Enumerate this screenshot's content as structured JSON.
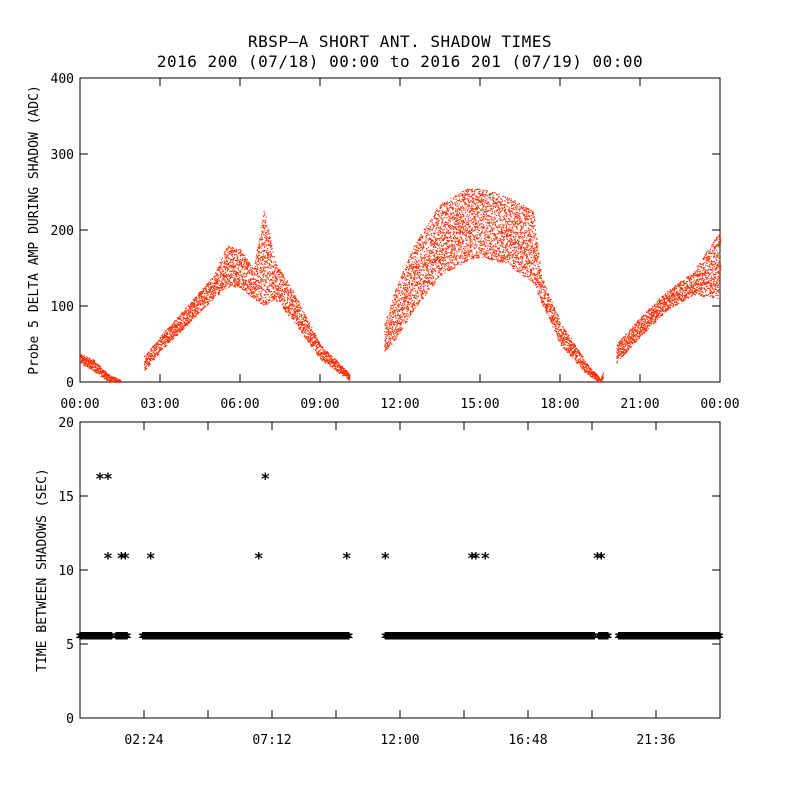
{
  "title_line1": "RBSP–A SHORT ANT. SHADOW TIMES",
  "title_line2": "2016 200 (07/18) 00:00 to 2016 201 (07/19) 00:00",
  "colors": {
    "points": "#ff2a00",
    "stars": "#000000",
    "axes": "#000000"
  },
  "chart_data": [
    {
      "type": "scatter",
      "title": "",
      "xlabel": "",
      "ylabel": "Probe 5 DELTA AMP DURING SHADOW (ADC)",
      "xlim": [
        0,
        24
      ],
      "ylim": [
        0,
        400
      ],
      "xticks": [
        0,
        3,
        6,
        9,
        12,
        15,
        18,
        21,
        24
      ],
      "xtick_labels": [
        "00:00",
        "03:00",
        "06:00",
        "09:00",
        "12:00",
        "15:00",
        "18:00",
        "21:00",
        "00:00"
      ],
      "yticks": [
        0,
        100,
        200,
        300,
        400
      ],
      "ytick_labels": [
        "0",
        "100",
        "200",
        "300",
        "400"
      ],
      "grid": false,
      "series": [
        {
          "color": "#ff2a00",
          "envelope_hours": [
            0.0,
            0.5,
            1.0,
            1.5,
            2.0,
            2.4,
            3.0,
            4.0,
            5.0,
            5.5,
            6.0,
            6.5,
            6.9,
            7.3,
            8.0,
            9.0,
            10.0,
            10.2,
            11.4,
            11.8,
            12.5,
            13.5,
            14.5,
            15.0,
            16.0,
            17.0,
            17.3,
            18.0,
            19.0,
            19.5,
            20.1,
            21.0,
            22.0,
            23.0,
            24.0
          ],
          "envelope_low": [
            25,
            15,
            2,
            0,
            0,
            15,
            40,
            75,
            110,
            125,
            125,
            110,
            100,
            110,
            80,
            30,
            5,
            0,
            40,
            55,
            95,
            140,
            160,
            165,
            155,
            130,
            105,
            50,
            10,
            0,
            25,
            60,
            95,
            115,
            110
          ],
          "envelope_high": [
            38,
            30,
            12,
            3,
            0,
            35,
            60,
            100,
            140,
            180,
            175,
            150,
            230,
            160,
            120,
            50,
            15,
            5,
            75,
            120,
            180,
            235,
            255,
            255,
            245,
            225,
            140,
            80,
            25,
            5,
            50,
            85,
            120,
            145,
            200
          ],
          "gaps_hours": [
            [
              1.5,
              2.4
            ],
            [
              10.1,
              11.4
            ],
            [
              19.6,
              20.1
            ]
          ]
        }
      ]
    },
    {
      "type": "scatter",
      "title": "",
      "xlabel": "",
      "ylabel": "TIME BETWEEN SHADOWS (SEC)",
      "xlim": [
        0,
        24
      ],
      "ylim": [
        0,
        20
      ],
      "xticks": [
        0,
        2.4,
        4.8,
        7.2,
        9.6,
        12.0,
        14.4,
        16.8,
        19.2,
        21.6,
        24.0
      ],
      "labeled_xticks": [
        2.4,
        7.2,
        12.0,
        16.8,
        21.6
      ],
      "xtick_labels": [
        "02:24",
        "07:12",
        "12:00",
        "16:48",
        "21:36"
      ],
      "yticks": [
        0,
        5,
        10,
        15,
        20
      ],
      "ytick_labels": [
        "0",
        "5",
        "10",
        "15",
        "20"
      ],
      "grid": false,
      "series": [
        {
          "marker": "asterisk",
          "color": "#000000",
          "baseline_value": 5.5,
          "baseline_ranges_hours": [
            [
              0.0,
              1.2
            ],
            [
              1.35,
              1.8
            ],
            [
              2.35,
              10.1
            ],
            [
              11.45,
              19.3
            ],
            [
              19.45,
              19.8
            ],
            [
              20.2,
              24.0
            ]
          ],
          "points": [
            [
              0.75,
              16.3
            ],
            [
              1.05,
              16.3
            ],
            [
              6.95,
              16.3
            ],
            [
              1.05,
              10.9
            ],
            [
              1.55,
              10.9
            ],
            [
              1.7,
              10.9
            ],
            [
              2.65,
              10.9
            ],
            [
              6.7,
              10.9
            ],
            [
              10.0,
              10.9
            ],
            [
              11.45,
              10.9
            ],
            [
              14.7,
              10.9
            ],
            [
              14.85,
              10.9
            ],
            [
              15.2,
              10.9
            ],
            [
              19.4,
              10.9
            ],
            [
              19.55,
              10.9
            ]
          ]
        }
      ]
    }
  ]
}
